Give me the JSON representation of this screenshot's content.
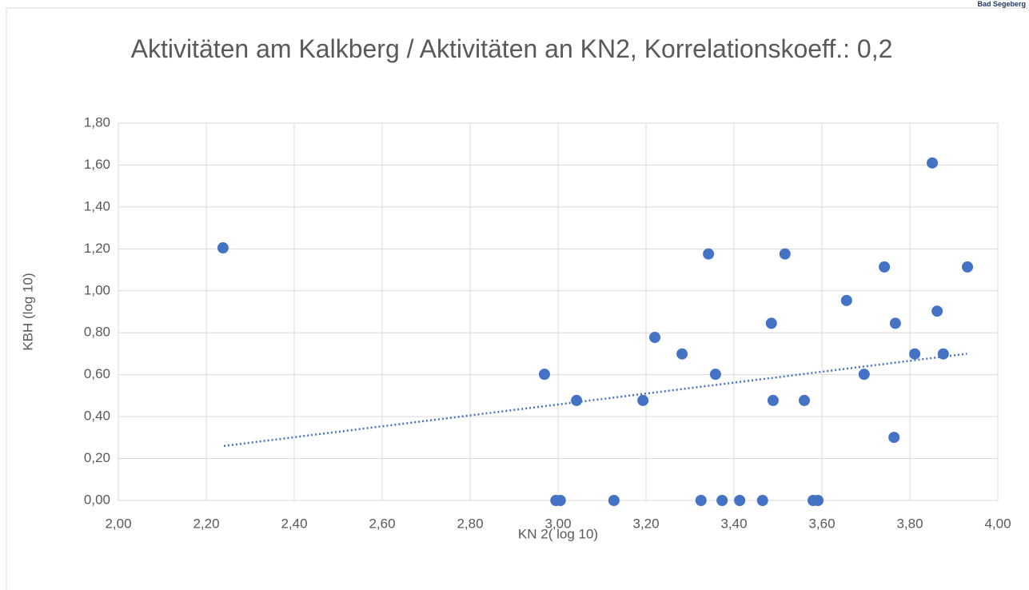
{
  "logo": "Bad Segeberg",
  "chart_data": {
    "type": "scatter",
    "title": "Aktivitäten am Kalkberg / Aktivitäten an KN2, Korrelationskoeff.: 0,2",
    "x_label": "KN 2( log 10)",
    "y_label": "KBH (log 10)",
    "x": [
      2.238,
      2.969,
      3.042,
      2.995,
      3.005,
      3.127,
      3.193,
      3.22,
      3.282,
      3.325,
      3.342,
      3.358,
      3.373,
      3.413,
      3.465,
      3.485,
      3.489,
      3.516,
      3.56,
      3.58,
      3.591,
      3.656,
      3.696,
      3.742,
      3.764,
      3.767,
      3.811,
      3.851,
      3.862,
      3.876,
      3.931
    ],
    "values": [
      1.205,
      0.602,
      0.477,
      0,
      0,
      0,
      0.477,
      0.778,
      0.699,
      0,
      1.176,
      0.602,
      0,
      0,
      0,
      0.845,
      0.477,
      1.176,
      0.477,
      0,
      0,
      0.954,
      0.602,
      1.114,
      0.301,
      0.845,
      0.699,
      1.61,
      0.903,
      0.699,
      1.114
    ],
    "color": "#4472c4",
    "trendline": {
      "x": [
        2.24,
        3.93
      ],
      "values": [
        0.26,
        0.7
      ]
    },
    "xlim": [
      2,
      4
    ],
    "ylim": [
      0,
      1.8
    ],
    "xticks": [
      {
        "value": 2,
        "label": "2,00"
      },
      {
        "value": 2.2,
        "label": "2,20"
      },
      {
        "value": 2.4,
        "label": "2,40"
      },
      {
        "value": 2.6,
        "label": "2,60"
      },
      {
        "value": 2.8,
        "label": "2,80"
      },
      {
        "value": 3,
        "label": "3,00"
      },
      {
        "value": 3.2,
        "label": "3,20"
      },
      {
        "value": 3.4,
        "label": "3,40"
      },
      {
        "value": 3.6,
        "label": "3,60"
      },
      {
        "value": 3.8,
        "label": "3,80"
      },
      {
        "value": 4,
        "label": "4,00"
      }
    ],
    "yticks": [
      {
        "value": 0,
        "label": "0,00"
      },
      {
        "value": 0.2,
        "label": "0,20"
      },
      {
        "value": 0.4,
        "label": "0,40"
      },
      {
        "value": 0.6,
        "label": "0,60"
      },
      {
        "value": 0.8,
        "label": "0,80"
      },
      {
        "value": 1,
        "label": "1,00"
      },
      {
        "value": 1.2,
        "label": "1,20"
      },
      {
        "value": 1.4,
        "label": "1,40"
      },
      {
        "value": 1.6,
        "label": "1,60"
      },
      {
        "value": 1.8,
        "label": "1,80"
      }
    ],
    "grid": true
  }
}
